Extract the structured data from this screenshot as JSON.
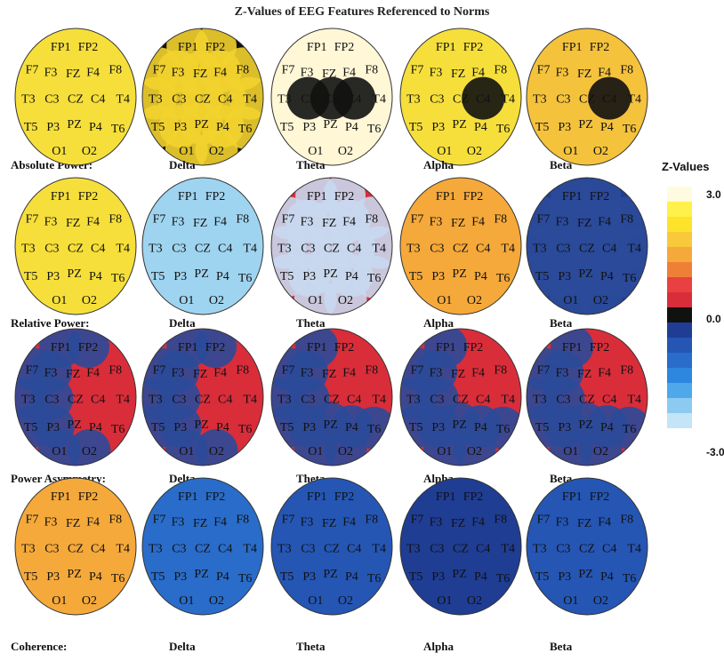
{
  "figure": {
    "title": "Z-Values of EEG Features Referenced to Norms"
  },
  "rows": [
    {
      "label": "Absolute Power:",
      "bands": [
        {
          "name": "",
          "ov": {}
        },
        {
          "name": "Delta",
          "ov": {
            "FP1": "#f2d22c",
            "FP2": "#f2d22c",
            "F7": "#f2d22c",
            "F3": "#f2d22c",
            "FZ": "#f2d22c",
            "F4": "#f2d22c",
            "F8": "#f2d22c",
            "T3": "#f2d22c",
            "C3": "#f2d22c",
            "CZ": "#f2d22c",
            "C4": "#f2d22c",
            "T4": "#f2d22c",
            "T5": "#f2d22c",
            "P3": "#f2d22c",
            "PZ": "#f2d22c",
            "P4": "#f2d22c",
            "T6": "#f2d22c",
            "O1": "#f2d22c",
            "O2": "#f2d22c"
          }
        },
        {
          "name": "Theta",
          "ov": {
            "C3": "#111111",
            "CZ": "#111111",
            "C4": "#111111"
          }
        },
        {
          "name": "Alpha",
          "ov": {
            "C4": "#111111"
          }
        },
        {
          "name": "Beta",
          "ov": {
            "C4": "#111111"
          }
        }
      ]
    },
    {
      "label": "Relative Power:",
      "bands": [
        {
          "name": "",
          "ov": {}
        },
        {
          "name": "Delta",
          "ov": {}
        },
        {
          "name": "Theta",
          "ov": {
            "FP1": "#c8d8ee",
            "FP2": "#c8d8ee",
            "F7": "#c8d8ee",
            "F3": "#c8d8ee",
            "FZ": "#c8d8ee",
            "F4": "#c8d8ee",
            "F8": "#c8d8ee",
            "T3": "#c8d8ee",
            "C3": "#c8d8ee",
            "CZ": "#c8d8ee",
            "C4": "#c8d8ee",
            "T4": "#c8d8ee",
            "T5": "#c8d8ee",
            "P3": "#c8d8ee",
            "PZ": "#c8d8ee",
            "P4": "#c8d8ee",
            "T6": "#c8d8ee",
            "O1": "#c8d8ee",
            "O2": "#c8d8ee"
          }
        },
        {
          "name": "Alpha",
          "ov": {}
        },
        {
          "name": "Beta",
          "ov": {
            "FP1": "#2b4a9a",
            "FP2": "#2b4a9a",
            "F7": "#2b4a9a",
            "F3": "#2b4a9a",
            "FZ": "#2b4a9a",
            "F4": "#2b4a9a",
            "F8": "#2b4a9a",
            "T3": "#2b4a9a",
            "C3": "#2b4a9a",
            "CZ": "#2b4a9a",
            "C4": "#2b4a9a",
            "T4": "#2b4a9a",
            "T5": "#2b4a9a",
            "P3": "#2b4a9a",
            "PZ": "#2b4a9a",
            "P4": "#2b4a9a",
            "T6": "#2b4a9a",
            "O1": "#2b4a9a",
            "O2": "#2b4a9a"
          }
        }
      ]
    },
    {
      "label": "Power Asymmetry:",
      "bands": [
        {
          "name": "",
          "ov": {
            "FP1": "#2b4a9a",
            "F7": "#2b4a9a",
            "F3": "#2b4a9a",
            "T3": "#2b4a9a",
            "C3": "#2b4a9a",
            "T5": "#2b4a9a",
            "P3": "#2b4a9a",
            "O1": "#2b4a9a",
            "O2": "#2b4a9a",
            "FP2": "#2b4a9a"
          }
        },
        {
          "name": "Delta",
          "ov": {
            "FP1": "#2b4a9a",
            "F7": "#2b4a9a",
            "F3": "#2b4a9a",
            "T3": "#2b4a9a",
            "C3": "#2b4a9a",
            "T5": "#2b4a9a",
            "P3": "#2b4a9a",
            "O1": "#2b4a9a",
            "O2": "#2b4a9a",
            "FP2": "#2b4a9a"
          }
        },
        {
          "name": "Theta",
          "ov": {
            "FP1": "#2b4a9a",
            "F7": "#2b4a9a",
            "F3": "#2b4a9a",
            "T3": "#2b4a9a",
            "C3": "#2b4a9a",
            "T5": "#2b4a9a",
            "P3": "#2b4a9a",
            "O1": "#2b4a9a",
            "O2": "#2b4a9a",
            "T6": "#2b4a9a",
            "P4": "#2b4a9a",
            "PZ": "#2b4a9a"
          }
        },
        {
          "name": "Alpha",
          "ov": {
            "FP1": "#2b4a9a",
            "F7": "#2b4a9a",
            "F3": "#2b4a9a",
            "T3": "#2b4a9a",
            "C3": "#2b4a9a",
            "T5": "#2b4a9a",
            "P3": "#2b4a9a",
            "O1": "#2b4a9a",
            "O2": "#2b4a9a",
            "T6": "#2b4a9a",
            "P4": "#2b4a9a",
            "PZ": "#2b4a9a"
          }
        },
        {
          "name": "Beta",
          "ov": {
            "FP1": "#2b4a9a",
            "F7": "#2b4a9a",
            "F3": "#2b4a9a",
            "T3": "#2b4a9a",
            "C3": "#2b4a9a",
            "T5": "#2b4a9a",
            "P3": "#2b4a9a",
            "O1": "#2b4a9a",
            "O2": "#2b4a9a",
            "T6": "#2b4a9a",
            "P4": "#2b4a9a",
            "PZ": "#2b4a9a"
          }
        }
      ]
    },
    {
      "label": "Coherence:",
      "bands": [
        {
          "name": "",
          "ov": {}
        },
        {
          "name": "Delta",
          "ov": {}
        },
        {
          "name": "Theta",
          "ov": {}
        },
        {
          "name": "Alpha",
          "ov": {}
        },
        {
          "name": "Beta",
          "ov": {}
        }
      ]
    }
  ],
  "legend": {
    "title": "Z-Values",
    "max_label": "3.0",
    "zero_label": "0.0",
    "min_label": "-3.0",
    "colors": [
      "#fffbe0",
      "#fff14c",
      "#fde32a",
      "#f8c93a",
      "#f5a93a",
      "#ee7f36",
      "#e8413f",
      "#d92d3a",
      "#111111",
      "#1f3d93",
      "#2556b4",
      "#2a6cc9",
      "#2e87de",
      "#4fa8ea",
      "#8ccaf2",
      "#c4e4f8"
    ]
  },
  "electrodes": [
    "FP1",
    "FP2",
    "F7",
    "F3",
    "FZ",
    "F4",
    "F8",
    "T3",
    "C3",
    "CZ",
    "C4",
    "T4",
    "T5",
    "P3",
    "PZ",
    "P4",
    "T6",
    "O1",
    "O2"
  ]
}
